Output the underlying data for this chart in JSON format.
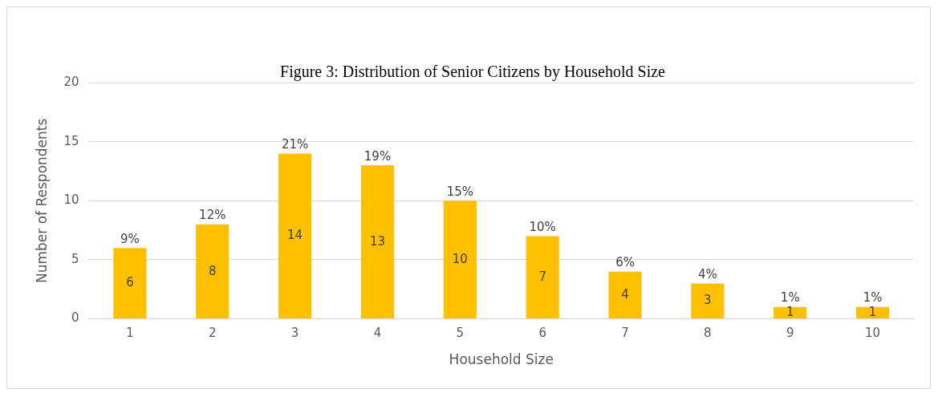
{
  "chart_data": {
    "type": "bar",
    "title": "Figure 3: Distribution of Senior Citizens by Household Size",
    "xlabel": "Household Size",
    "ylabel": "Number of Respondents",
    "categories": [
      "1",
      "2",
      "3",
      "4",
      "5",
      "6",
      "7",
      "8",
      "9",
      "10"
    ],
    "values": [
      6,
      8,
      14,
      13,
      10,
      7,
      4,
      3,
      1,
      1
    ],
    "color": "#ffc000",
    "ylim": [
      0,
      20
    ],
    "yticks": [
      0,
      5,
      10,
      15,
      20
    ],
    "grid": "y",
    "legend": false,
    "data_labels": true,
    "annotations": [
      {
        "text": "9%",
        "x": "1",
        "y": 6
      },
      {
        "text": "12%",
        "x": "2",
        "y": 8
      },
      {
        "text": "21%",
        "x": "3",
        "y": 14
      },
      {
        "text": "19%",
        "x": "4",
        "y": 13
      },
      {
        "text": "15%",
        "x": "5",
        "y": 10
      },
      {
        "text": "10%",
        "x": "6",
        "y": 7
      },
      {
        "text": "6%",
        "x": "7",
        "y": 4
      },
      {
        "text": "4%",
        "x": "8",
        "y": 3
      },
      {
        "text": "1%",
        "x": "9",
        "y": 1
      },
      {
        "text": "1%",
        "x": "10",
        "y": 1
      }
    ]
  }
}
